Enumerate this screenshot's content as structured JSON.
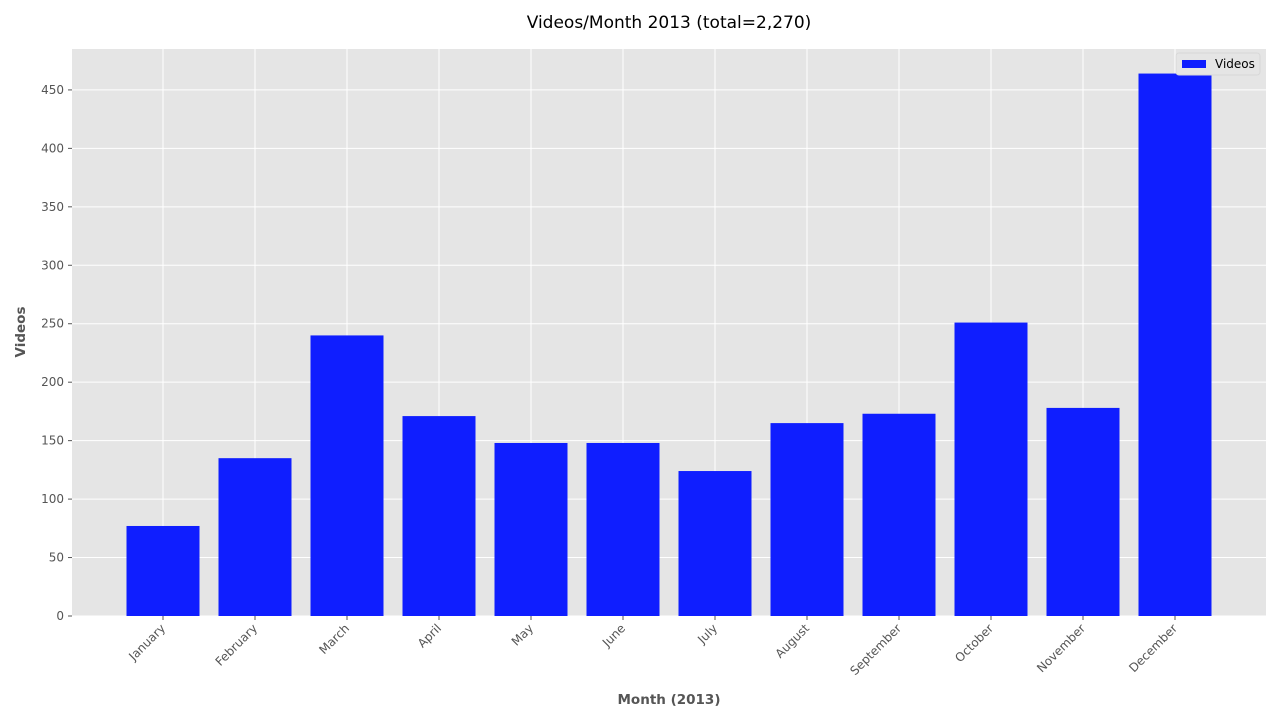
{
  "chart_data": {
    "type": "bar",
    "title": "Videos/Month 2013 (total=2,270)",
    "xlabel": "Month (2013)",
    "ylabel": "Videos",
    "categories": [
      "January",
      "February",
      "March",
      "April",
      "May",
      "June",
      "July",
      "August",
      "September",
      "October",
      "November",
      "December"
    ],
    "series": [
      {
        "name": "Videos",
        "color": "#0f1eff",
        "values": [
          77,
          135,
          240,
          171,
          148,
          148,
          124,
          165,
          173,
          251,
          178,
          464
        ]
      }
    ],
    "ylim": [
      0,
      485
    ],
    "yticks": [
      0,
      50,
      100,
      150,
      200,
      250,
      300,
      350,
      400,
      450
    ],
    "grid": true,
    "legend": "top-right",
    "colors": {
      "plot_background": "#e5e5e5",
      "grid": "#ffffff",
      "bar": "#0f1eff"
    }
  }
}
